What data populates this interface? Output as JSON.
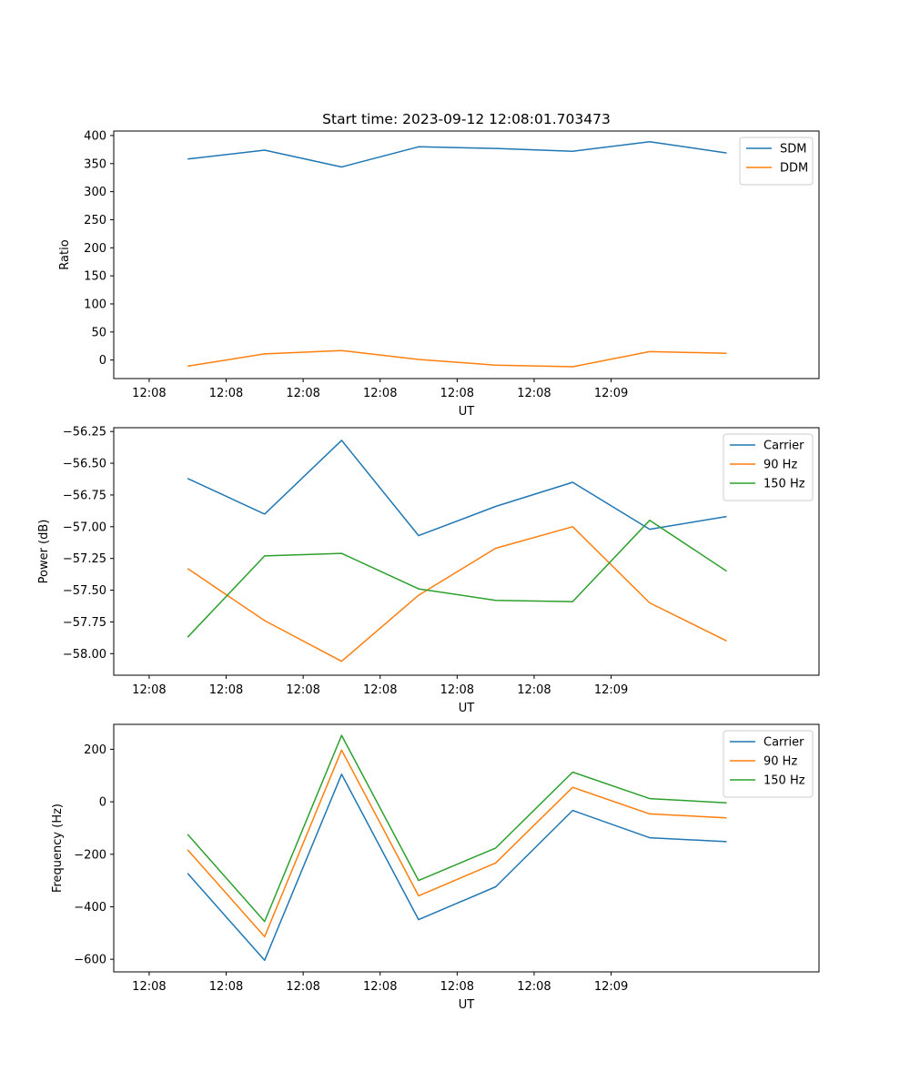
{
  "chart_data": [
    {
      "type": "line",
      "title": "Start time: 2023-09-12 12:08:01.703473",
      "xlabel": "UT",
      "ylabel": "Ratio",
      "x_ticks": [
        "12:08",
        "12:08",
        "12:08",
        "12:08",
        "12:08",
        "12:08",
        "12:09"
      ],
      "xlim": [
        -0.46,
        8.7
      ],
      "x": [
        0.5,
        1.5,
        2.5,
        3.5,
        4.5,
        5.5,
        6.5,
        7.5
      ],
      "ylim": [
        -33,
        408
      ],
      "y_ticks": [
        0,
        50,
        100,
        150,
        200,
        250,
        300,
        350,
        400
      ],
      "series": [
        {
          "name": "SDM",
          "color": "#1f77b4",
          "values": [
            358,
            374,
            344,
            380,
            377,
            372,
            389,
            369
          ]
        },
        {
          "name": "DDM",
          "color": "#ff7f0e",
          "values": [
            -11,
            11,
            17,
            1,
            -9,
            -12,
            15,
            12
          ]
        }
      ],
      "legend": "top-right"
    },
    {
      "type": "line",
      "title": "",
      "xlabel": "UT",
      "ylabel": "Power (dB)",
      "x_ticks": [
        "12:08",
        "12:08",
        "12:08",
        "12:08",
        "12:08",
        "12:08",
        "12:09"
      ],
      "xlim": [
        -0.46,
        8.7
      ],
      "x": [
        0.5,
        1.5,
        2.5,
        3.5,
        4.5,
        5.5,
        6.5,
        7.5
      ],
      "ylim": [
        -58.17,
        -56.22
      ],
      "y_ticks": [
        -58.0,
        -57.75,
        -57.5,
        -57.25,
        -57.0,
        -56.75,
        -56.5,
        -56.25
      ],
      "y_tick_labels": [
        "−58.00",
        "−57.75",
        "−57.50",
        "−57.25",
        "−57.00",
        "−56.75",
        "−56.50",
        "−56.25"
      ],
      "series": [
        {
          "name": "Carrier",
          "color": "#1f77b4",
          "values": [
            -56.62,
            -56.9,
            -56.32,
            -57.07,
            -56.84,
            -56.65,
            -57.02,
            -56.92
          ]
        },
        {
          "name": "90 Hz",
          "color": "#ff7f0e",
          "values": [
            -57.33,
            -57.74,
            -58.06,
            -57.54,
            -57.17,
            -57.0,
            -57.6,
            -57.9
          ]
        },
        {
          "name": "150 Hz",
          "color": "#2ca02c",
          "values": [
            -57.87,
            -57.23,
            -57.21,
            -57.49,
            -57.58,
            -57.59,
            -56.95,
            -57.35
          ]
        }
      ],
      "legend": "top-right"
    },
    {
      "type": "line",
      "title": "",
      "xlabel": "UT",
      "ylabel": "Frequency (Hz)",
      "x_ticks": [
        "12:08",
        "12:08",
        "12:08",
        "12:08",
        "12:08",
        "12:08",
        "12:09"
      ],
      "xlim": [
        -0.46,
        8.7
      ],
      "x": [
        0.5,
        1.5,
        2.5,
        3.5,
        4.5,
        5.5,
        6.5,
        7.5
      ],
      "ylim": [
        -648,
        295
      ],
      "y_ticks": [
        -600,
        -400,
        -200,
        0,
        200
      ],
      "y_tick_labels": [
        "−600",
        "−400",
        "−200",
        "0",
        "200"
      ],
      "series": [
        {
          "name": "Carrier",
          "color": "#1f77b4",
          "values": [
            -273,
            -604,
            105,
            -449,
            -324,
            -33,
            -137,
            -152
          ]
        },
        {
          "name": "90 Hz",
          "color": "#ff7f0e",
          "values": [
            -183,
            -514,
            197,
            -358,
            -233,
            55,
            -46,
            -61
          ]
        },
        {
          "name": "150 Hz",
          "color": "#2ca02c",
          "values": [
            -124,
            -456,
            253,
            -300,
            -176,
            113,
            12,
            -4
          ]
        }
      ],
      "legend": "top-right"
    }
  ]
}
